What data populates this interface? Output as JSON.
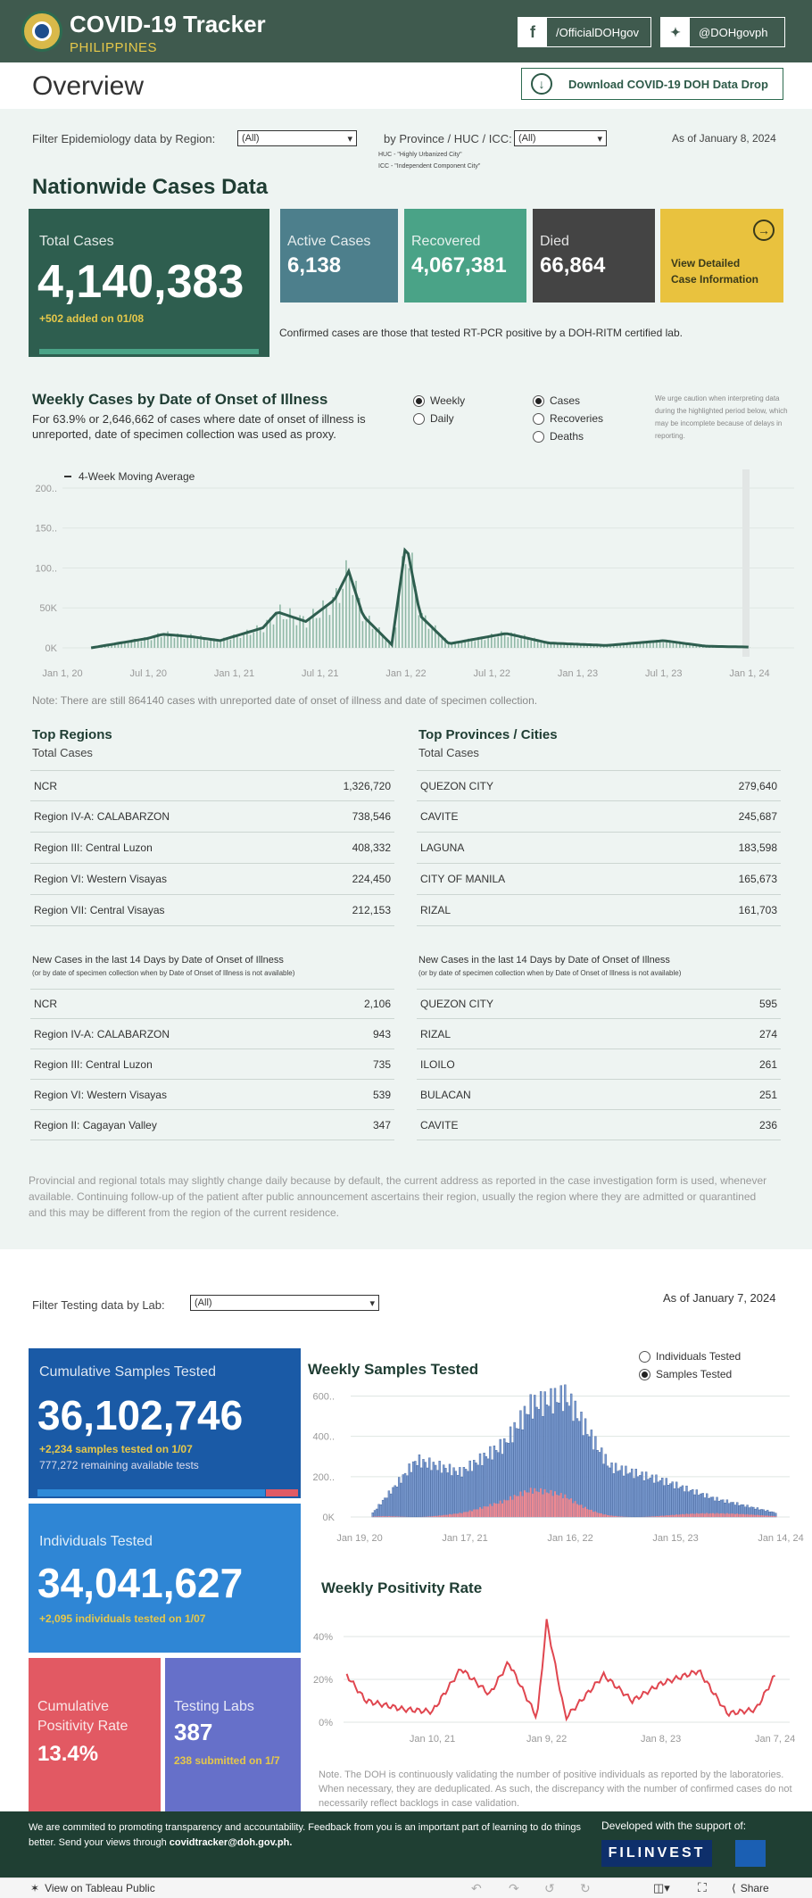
{
  "header": {
    "title": "COVID-19 Tracker",
    "subtitle": "PHILIPPINES",
    "facebook": "/OfficialDOHgov",
    "twitter": "@DOHgovph"
  },
  "overview": {
    "title": "Overview",
    "download_label": "Download COVID-19 DOH Data Drop"
  },
  "filters": {
    "region_label": "Filter Epidemiology data by Region:",
    "region_value": "(All)",
    "province_label": "by Province / HUC / ICC:",
    "province_value": "(All)",
    "huc_note": "HUC - \"Highly Urbanized City\"",
    "icc_note": "ICC - \"Independent Component City\"",
    "as_of": "As of January 8, 2024"
  },
  "nationwide": {
    "title": "Nationwide Cases Data",
    "total_label": "Total Cases",
    "total_value": "4,140,383",
    "total_added": "+502 added on 01/08",
    "active_label": "Active Cases",
    "active_value": "6,138",
    "recovered_label": "Recovered",
    "recovered_value": "4,067,381",
    "died_label": "Died",
    "died_value": "66,864",
    "view_label_1": "View Detailed",
    "view_label_2": "Case Information",
    "confirmed_note": "Confirmed cases are those that tested RT-PCR positive by a DOH-RITM certified lab.",
    "colors": {
      "total": "#2e5e4f",
      "active": "#4d7f8c",
      "recovered": "#4aa387",
      "died": "#444444",
      "view": "#e9c23e"
    }
  },
  "weekly": {
    "title": "Weekly Cases by Date of Onset of Illness",
    "desc": "For 63.9% or 2,646,662 of cases where date of onset of illness is unreported, date of specimen collection was used as proxy.",
    "opt_weekly": "Weekly",
    "opt_daily": "Daily",
    "opt_cases": "Cases",
    "opt_recoveries": "Recoveries",
    "opt_deaths": "Deaths",
    "caution": "We urge caution when interpreting data during the highlighted period below, which may be incomplete because of delays in reporting.",
    "legend": "4-Week Moving Average",
    "note": "Note: There are still 864140 cases with unreported date of onset of illness and date of specimen collection."
  },
  "chart_data": [
    {
      "type": "bar",
      "title": "Weekly Cases by Date of Onset of Illness",
      "x_ticks": [
        "Jan 1, 20",
        "Jul 1, 20",
        "Jan 1, 21",
        "Jul 1, 21",
        "Jan 1, 22",
        "Jul 1, 22",
        "Jan 1, 23",
        "Jul 1, 23",
        "Jan 1, 24"
      ],
      "y_ticks": [
        "0K",
        "50K",
        "100..",
        "150..",
        "200.."
      ],
      "ylim": [
        0,
        210000
      ],
      "series": [
        {
          "name": "4-Week Moving Average",
          "type": "line",
          "x": [
            "2020-03",
            "2020-07",
            "2020-08",
            "2020-10",
            "2020-12",
            "2021-03",
            "2021-04",
            "2021-06",
            "2021-08",
            "2021-09",
            "2021-10",
            "2021-12",
            "2022-01",
            "2022-02",
            "2022-04",
            "2022-08",
            "2022-11",
            "2023-03",
            "2023-07",
            "2023-10",
            "2024-01"
          ],
          "values": [
            0,
            12000,
            17000,
            14000,
            9000,
            25000,
            45000,
            33000,
            60000,
            96000,
            40000,
            4000,
            132000,
            40000,
            5000,
            18000,
            6000,
            3000,
            9000,
            2000,
            1000
          ]
        }
      ]
    },
    {
      "type": "bar",
      "title": "Weekly Samples Tested",
      "x_ticks": [
        "Jan 19, 20",
        "Jan 17, 21",
        "Jan 16, 22",
        "Jan 15, 23",
        "Jan 14, 24"
      ],
      "y_ticks": [
        "0K",
        "200..",
        "400..",
        "600.."
      ],
      "ylim": [
        0,
        620000
      ],
      "series": [
        {
          "name": "Samples Tested",
          "x": [
            "2020-03",
            "2020-08",
            "2021-01",
            "2021-06",
            "2021-09",
            "2022-01",
            "2022-06",
            "2022-12",
            "2023-06",
            "2024-01"
          ],
          "values": [
            20000,
            280000,
            220000,
            360000,
            550000,
            600000,
            250000,
            180000,
            90000,
            20000
          ]
        }
      ]
    },
    {
      "type": "line",
      "title": "Weekly Positivity Rate",
      "x_ticks": [
        "Jan 10, 21",
        "Jan 9, 22",
        "Jan 8, 23",
        "Jan 7, 24"
      ],
      "y_ticks": [
        "0%",
        "20%",
        "40%"
      ],
      "ylim": [
        0,
        50
      ],
      "series": [
        {
          "name": "Positivity Rate",
          "x": [
            "2020-04",
            "2020-06",
            "2020-10",
            "2021-01",
            "2021-04",
            "2021-07",
            "2021-09",
            "2021-12",
            "2022-01",
            "2022-03",
            "2022-07",
            "2022-10",
            "2023-01",
            "2023-05",
            "2023-08",
            "2023-11",
            "2024-01"
          ],
          "values": [
            22,
            10,
            6,
            5,
            25,
            13,
            28,
            2,
            47,
            2,
            22,
            10,
            18,
            24,
            4,
            6,
            22
          ]
        }
      ]
    }
  ],
  "top_regions": {
    "title": "Top Regions",
    "subtitle": "Total Cases",
    "rows": [
      {
        "name": "NCR",
        "value": "1,326,720"
      },
      {
        "name": "Region IV-A: CALABARZON",
        "value": "738,546"
      },
      {
        "name": "Region III: Central Luzon",
        "value": "408,332"
      },
      {
        "name": "Region VI: Western Visayas",
        "value": "224,450"
      },
      {
        "name": "Region VII: Central Visayas",
        "value": "212,153"
      }
    ]
  },
  "top_provinces": {
    "title": "Top Provinces / Cities",
    "subtitle": "Total Cases",
    "rows": [
      {
        "name": "QUEZON CITY",
        "value": "279,640"
      },
      {
        "name": "CAVITE",
        "value": "245,687"
      },
      {
        "name": "LAGUNA",
        "value": "183,598"
      },
      {
        "name": "CITY OF MANILA",
        "value": "165,673"
      },
      {
        "name": "RIZAL",
        "value": "161,703"
      }
    ]
  },
  "new_regions": {
    "title": "New Cases in the last 14 Days by Date of Onset of Illness",
    "subtitle": "(or by date of specimen collection when by Date of Onset of Illness is not available)",
    "rows": [
      {
        "name": "NCR",
        "value": "2,106"
      },
      {
        "name": "Region IV-A: CALABARZON",
        "value": "943"
      },
      {
        "name": "Region III: Central Luzon",
        "value": "735"
      },
      {
        "name": "Region VI: Western Visayas",
        "value": "539"
      },
      {
        "name": "Region II: Cagayan Valley",
        "value": "347"
      }
    ]
  },
  "new_provinces": {
    "title": "New Cases in the last 14 Days by Date of Onset of Illness",
    "subtitle": "(or by date of specimen collection when by Date of Onset of Illness is not available)",
    "rows": [
      {
        "name": "QUEZON CITY",
        "value": "595"
      },
      {
        "name": "RIZAL",
        "value": "274"
      },
      {
        "name": "ILOILO",
        "value": "261"
      },
      {
        "name": "BULACAN",
        "value": "251"
      },
      {
        "name": "CAVITE",
        "value": "236"
      }
    ]
  },
  "disclaimer": "Provincial and regional totals may slightly change daily because by default, the current address as reported in the case investigation form is used, whenever available. Continuing follow-up of the patient after public announcement ascertains their region, usually the region where they are admitted or quarantined and this may be different from the region of the current residence.",
  "testing": {
    "filter_label": "Filter Testing data by Lab:",
    "filter_value": "(All)",
    "as_of": "As of January 7, 2024",
    "cum_label": "Cumulative Samples Tested",
    "cum_value": "36,102,746",
    "cum_added": "+2,234 samples tested on 1/07",
    "cum_remaining": "777,272 remaining available tests",
    "ind_label": "Individuals Tested",
    "ind_value": "34,041,627",
    "ind_added": "+2,095  individuals  tested on 1/07",
    "pos_label_1": "Cumulative",
    "pos_label_2": "Positivity Rate",
    "pos_value": "13.4%",
    "labs_label": "Testing Labs",
    "labs_value": "387",
    "labs_sub": "238 submitted on 1/7",
    "samples_title": "Weekly Samples Tested",
    "opt_individuals": "Individuals Tested",
    "opt_samples": "Samples Tested",
    "positivity_title": "Weekly Positivity Rate",
    "note": "Note. The DOH is continuously validating the number of positive individuals as reported by the laboratories. When necessary, they are deduplicated. As such, the discrepancy with the number of confirmed cases do not necessarily reflect backlogs in case validation."
  },
  "footer": {
    "text_1": "We are commited to promoting transparency and accountability. Feedback from you is an important part of learning to do things better. Send your views through ",
    "email": "covidtracker@doh.gov.ph.",
    "support": "Developed with the support of:",
    "sponsor": "FILINVEST"
  },
  "tabbar": {
    "view_label": "View on Tableau Public",
    "share": "Share"
  }
}
